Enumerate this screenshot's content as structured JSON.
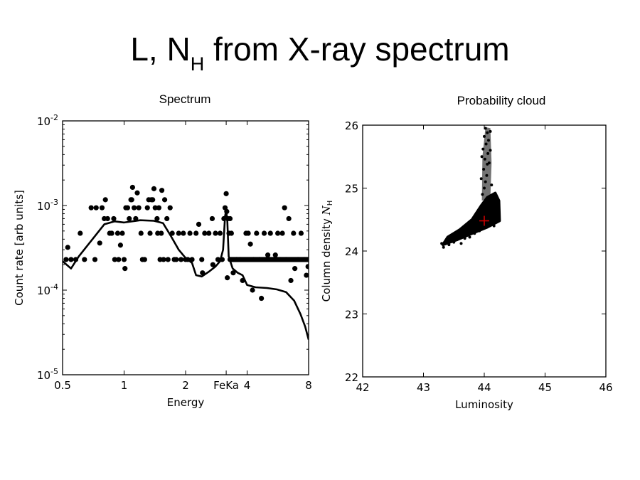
{
  "slide": {
    "title_main": "L, N",
    "title_sub": "H",
    "title_rest": " from X-ray spectrum"
  },
  "chart_data": [
    {
      "type": "scatter",
      "title": "Spectrum",
      "xlabel": "Energy",
      "ylabel": "Count rate [arb units]",
      "x_scale": "log",
      "y_scale": "log",
      "xlim": [
        0.5,
        8
      ],
      "ylim": [
        1e-05,
        0.01
      ],
      "grid": false,
      "x_ticks": [
        {
          "value": 0.5,
          "label": "0.5"
        },
        {
          "value": 1,
          "label": "1"
        },
        {
          "value": 2,
          "label": "2"
        },
        {
          "value": 3.16,
          "label": "FeKa"
        },
        {
          "value": 4,
          "label": "4"
        },
        {
          "value": 8,
          "label": "8"
        }
      ],
      "y_ticks": [
        {
          "value": 0.01,
          "base": "10",
          "exp": "-2"
        },
        {
          "value": 0.001,
          "base": "10",
          "exp": "-3"
        },
        {
          "value": 0.0001,
          "base": "10",
          "exp": "-4"
        },
        {
          "value": 1e-05,
          "base": "10",
          "exp": "-5"
        }
      ],
      "series": [
        {
          "kind": "points",
          "color": "#000000",
          "points": [
            [
              0.52,
              0.00023
            ],
            [
              0.53,
              0.00032
            ],
            [
              0.55,
              0.00023
            ],
            [
              0.58,
              0.00023
            ],
            [
              0.61,
              0.00047
            ],
            [
              0.64,
              0.00023
            ],
            [
              0.69,
              0.00094
            ],
            [
              0.72,
              0.00023
            ],
            [
              0.73,
              0.00094
            ],
            [
              0.76,
              0.00036
            ],
            [
              0.78,
              0.00094
            ],
            [
              0.8,
              0.0007
            ],
            [
              0.81,
              0.00117
            ],
            [
              0.83,
              0.0007
            ],
            [
              0.85,
              0.00047
            ],
            [
              0.87,
              0.00047
            ],
            [
              0.89,
              0.0007
            ],
            [
              0.9,
              0.00023
            ],
            [
              0.93,
              0.00047
            ],
            [
              0.94,
              0.00023
            ],
            [
              0.96,
              0.00034
            ],
            [
              0.98,
              0.00047
            ],
            [
              1.0,
              0.00023
            ],
            [
              1.01,
              0.00018
            ],
            [
              1.02,
              0.00094
            ],
            [
              1.04,
              0.00094
            ],
            [
              1.06,
              0.0007
            ],
            [
              1.08,
              0.00117
            ],
            [
              1.09,
              0.00117
            ],
            [
              1.1,
              0.00164
            ],
            [
              1.12,
              0.00094
            ],
            [
              1.14,
              0.0007
            ],
            [
              1.16,
              0.00141
            ],
            [
              1.18,
              0.00094
            ],
            [
              1.21,
              0.00047
            ],
            [
              1.23,
              0.00023
            ],
            [
              1.26,
              0.00023
            ],
            [
              1.3,
              0.00094
            ],
            [
              1.32,
              0.00117
            ],
            [
              1.34,
              0.00047
            ],
            [
              1.36,
              0.00117
            ],
            [
              1.38,
              0.00117
            ],
            [
              1.4,
              0.00158
            ],
            [
              1.42,
              0.00094
            ],
            [
              1.45,
              0.0007
            ],
            [
              1.46,
              0.00047
            ],
            [
              1.48,
              0.00094
            ],
            [
              1.5,
              0.00023
            ],
            [
              1.52,
              0.00047
            ],
            [
              1.53,
              0.00151
            ],
            [
              1.56,
              0.00023
            ],
            [
              1.58,
              0.00117
            ],
            [
              1.62,
              0.0007
            ],
            [
              1.64,
              0.00023
            ],
            [
              1.68,
              0.00094
            ],
            [
              1.72,
              0.00047
            ],
            [
              1.76,
              0.00023
            ],
            [
              1.8,
              0.00023
            ],
            [
              1.85,
              0.00047
            ],
            [
              1.9,
              0.00023
            ],
            [
              1.95,
              0.00047
            ],
            [
              2.0,
              0.00023
            ],
            [
              2.05,
              0.00023
            ],
            [
              2.1,
              0.00047
            ],
            [
              2.15,
              0.00023
            ],
            [
              2.25,
              0.00047
            ],
            [
              2.32,
              0.0006
            ],
            [
              2.4,
              0.00023
            ],
            [
              2.42,
              0.00016
            ],
            [
              2.48,
              0.00047
            ],
            [
              2.6,
              0.00047
            ],
            [
              2.7,
              0.0007
            ],
            [
              2.72,
              0.0002
            ],
            [
              2.8,
              0.00047
            ],
            [
              2.88,
              0.00023
            ],
            [
              2.95,
              0.00047
            ],
            [
              3.02,
              0.00023
            ],
            [
              3.08,
              0.0007
            ],
            [
              3.12,
              0.00094
            ],
            [
              3.16,
              0.00138
            ],
            [
              3.18,
              0.00085
            ],
            [
              3.22,
              0.0007
            ],
            [
              3.26,
              0.00047
            ],
            [
              3.3,
              0.0007
            ],
            [
              3.35,
              0.00047
            ],
            [
              3.2,
              0.00014
            ],
            [
              3.42,
              0.00016
            ],
            [
              3.55,
              0.00023
            ],
            [
              3.7,
              0.00023
            ],
            [
              3.8,
              0.00013
            ],
            [
              3.95,
              0.00047
            ],
            [
              4.05,
              0.00047
            ],
            [
              4.15,
              0.00035
            ],
            [
              4.25,
              0.0001
            ],
            [
              4.3,
              0.00023
            ],
            [
              4.45,
              0.00047
            ],
            [
              4.6,
              0.00023
            ],
            [
              4.7,
              8e-05
            ],
            [
              4.85,
              0.00047
            ],
            [
              4.95,
              0.00023
            ],
            [
              5.05,
              0.00026
            ],
            [
              5.2,
              0.00047
            ],
            [
              5.4,
              0.00023
            ],
            [
              5.5,
              0.00026
            ],
            [
              5.65,
              0.00047
            ],
            [
              5.8,
              0.00023
            ],
            [
              5.95,
              0.00047
            ],
            [
              6.1,
              0.00094
            ],
            [
              6.2,
              0.00023
            ],
            [
              6.4,
              0.0007
            ],
            [
              6.55,
              0.00013
            ],
            [
              6.75,
              0.00047
            ],
            [
              6.85,
              0.00018
            ],
            [
              7.1,
              0.00023
            ],
            [
              7.35,
              0.00047
            ],
            [
              7.6,
              0.00023
            ],
            [
              7.8,
              0.00015
            ],
            [
              7.95,
              0.00019
            ]
          ],
          "band": {
            "y": 0.00023,
            "x_from": 3.3,
            "x_to": 8
          }
        },
        {
          "kind": "line",
          "color": "#000000",
          "points": [
            [
              0.5,
              0.00022
            ],
            [
              0.55,
              0.00018
            ],
            [
              0.6,
              0.00025
            ],
            [
              0.7,
              0.0004
            ],
            [
              0.8,
              0.0006
            ],
            [
              0.9,
              0.00065
            ],
            [
              1.0,
              0.00063
            ],
            [
              1.2,
              0.00067
            ],
            [
              1.4,
              0.00066
            ],
            [
              1.55,
              0.00062
            ],
            [
              1.7,
              0.00043
            ],
            [
              1.85,
              0.0003
            ],
            [
              2.0,
              0.00024
            ],
            [
              2.15,
              0.00021
            ],
            [
              2.25,
              0.00015
            ],
            [
              2.4,
              0.000145
            ],
            [
              2.6,
              0.000165
            ],
            [
              2.8,
              0.00019
            ],
            [
              2.95,
              0.00022
            ],
            [
              3.05,
              0.0003
            ],
            [
              3.12,
              0.00075
            ],
            [
              3.16,
              0.00088
            ],
            [
              3.2,
              0.00065
            ],
            [
              3.25,
              0.00025
            ],
            [
              3.4,
              0.00018
            ],
            [
              3.6,
              0.00016
            ],
            [
              3.8,
              0.00015
            ],
            [
              4.0,
              0.000115
            ],
            [
              4.4,
              0.000108
            ],
            [
              5.0,
              0.000106
            ],
            [
              5.6,
              0.000102
            ],
            [
              6.2,
              9.5e-05
            ],
            [
              6.8,
              7.5e-05
            ],
            [
              7.3,
              5.2e-05
            ],
            [
              7.7,
              3.7e-05
            ],
            [
              8.0,
              2.6e-05
            ]
          ]
        }
      ]
    },
    {
      "type": "scatter",
      "title": "Probability cloud",
      "xlabel": "Luminosity",
      "ylabel": "Column density",
      "ylabel_symbol": "N",
      "ylabel_symbol_sub": "H",
      "xlim": [
        42,
        46
      ],
      "ylim": [
        22,
        26
      ],
      "grid": false,
      "x_ticks": [
        42,
        43,
        44,
        45,
        46
      ],
      "y_ticks": [
        22,
        23,
        24,
        25,
        26
      ],
      "best_fit": {
        "x": 44.0,
        "y": 24.48,
        "color": "#cc0000"
      },
      "cloud": {
        "color": "#000000",
        "points": [
          [
            43.3,
            24.12
          ],
          [
            43.33,
            24.06
          ],
          [
            43.38,
            24.18
          ],
          [
            43.42,
            24.1
          ],
          [
            43.45,
            24.2
          ],
          [
            43.5,
            24.14
          ],
          [
            43.52,
            24.25
          ],
          [
            43.55,
            24.18
          ],
          [
            43.58,
            24.3
          ],
          [
            43.6,
            24.22
          ],
          [
            43.62,
            24.12
          ],
          [
            43.64,
            24.28
          ],
          [
            43.66,
            24.35
          ],
          [
            43.68,
            24.2
          ],
          [
            43.7,
            24.26
          ],
          [
            43.72,
            24.38
          ],
          [
            43.74,
            24.3
          ],
          [
            43.76,
            24.22
          ],
          [
            43.78,
            24.42
          ],
          [
            43.8,
            24.34
          ],
          [
            43.82,
            24.46
          ],
          [
            43.84,
            24.28
          ],
          [
            43.86,
            24.52
          ],
          [
            43.88,
            24.4
          ],
          [
            43.9,
            24.58
          ],
          [
            43.92,
            24.32
          ],
          [
            43.94,
            24.48
          ],
          [
            43.96,
            24.64
          ],
          [
            43.98,
            24.38
          ],
          [
            44.0,
            24.55
          ],
          [
            44.02,
            24.7
          ],
          [
            44.04,
            24.44
          ],
          [
            44.06,
            24.62
          ],
          [
            44.08,
            24.8
          ],
          [
            44.1,
            24.5
          ],
          [
            44.12,
            24.68
          ],
          [
            44.14,
            24.58
          ],
          [
            44.16,
            24.4
          ],
          [
            44.18,
            24.74
          ],
          [
            44.2,
            24.6
          ],
          [
            44.22,
            24.5
          ],
          [
            44.24,
            24.66
          ],
          [
            43.97,
            24.9
          ],
          [
            44.0,
            25.0
          ],
          [
            44.02,
            25.1
          ],
          [
            44.04,
            25.2
          ],
          [
            43.99,
            25.3
          ],
          [
            44.05,
            25.38
          ],
          [
            44.01,
            25.46
          ],
          [
            44.06,
            25.55
          ],
          [
            43.98,
            25.62
          ],
          [
            44.03,
            25.7
          ],
          [
            44.07,
            25.76
          ],
          [
            44.0,
            25.82
          ],
          [
            44.05,
            25.88
          ],
          [
            44.02,
            25.95
          ],
          [
            44.1,
            25.9
          ],
          [
            44.08,
            25.4
          ],
          [
            44.12,
            25.05
          ],
          [
            43.95,
            25.15
          ],
          [
            44.1,
            25.6
          ],
          [
            43.96,
            25.5
          ]
        ]
      }
    }
  ]
}
